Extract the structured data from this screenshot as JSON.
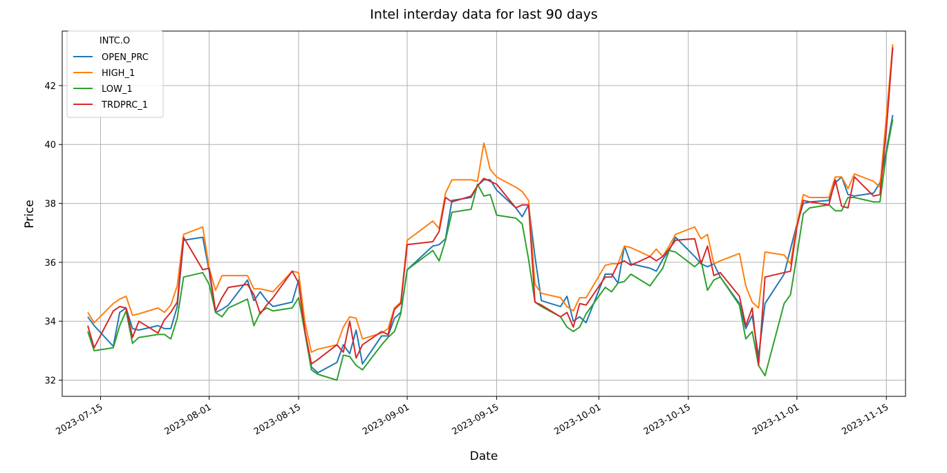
{
  "chart_data": {
    "type": "line",
    "title": "Intel interday data for last 90 days",
    "xlabel": "Date",
    "ylabel": "Price",
    "legend_title": "INTC.O",
    "legend_position": "upper-left",
    "grid": true,
    "xlim": [
      "2023-07-09",
      "2023-11-18"
    ],
    "ylim": [
      31.45,
      43.85
    ],
    "x_ticks": [
      "2023-07-15",
      "2023-08-01",
      "2023-08-15",
      "2023-09-01",
      "2023-09-15",
      "2023-10-01",
      "2023-10-15",
      "2023-11-01",
      "2023-11-15"
    ],
    "y_ticks": [
      32,
      34,
      36,
      38,
      40,
      42
    ],
    "x": [
      "2023-07-13",
      "2023-07-14",
      "2023-07-17",
      "2023-07-18",
      "2023-07-19",
      "2023-07-20",
      "2023-07-21",
      "2023-07-24",
      "2023-07-25",
      "2023-07-26",
      "2023-07-27",
      "2023-07-28",
      "2023-07-31",
      "2023-08-01",
      "2023-08-02",
      "2023-08-03",
      "2023-08-04",
      "2023-08-07",
      "2023-08-08",
      "2023-08-09",
      "2023-08-10",
      "2023-08-11",
      "2023-08-14",
      "2023-08-15",
      "2023-08-16",
      "2023-08-17",
      "2023-08-18",
      "2023-08-21",
      "2023-08-22",
      "2023-08-23",
      "2023-08-24",
      "2023-08-25",
      "2023-08-28",
      "2023-08-29",
      "2023-08-30",
      "2023-08-31",
      "2023-09-01",
      "2023-09-05",
      "2023-09-06",
      "2023-09-07",
      "2023-09-08",
      "2023-09-11",
      "2023-09-12",
      "2023-09-13",
      "2023-09-14",
      "2023-09-15",
      "2023-09-18",
      "2023-09-19",
      "2023-09-20",
      "2023-09-21",
      "2023-09-22",
      "2023-09-25",
      "2023-09-26",
      "2023-09-27",
      "2023-09-28",
      "2023-09-29",
      "2023-10-02",
      "2023-10-03",
      "2023-10-04",
      "2023-10-05",
      "2023-10-06",
      "2023-10-09",
      "2023-10-10",
      "2023-10-11",
      "2023-10-12",
      "2023-10-13",
      "2023-10-16",
      "2023-10-17",
      "2023-10-18",
      "2023-10-19",
      "2023-10-20",
      "2023-10-23",
      "2023-10-24",
      "2023-10-25",
      "2023-10-26",
      "2023-10-27",
      "2023-10-30",
      "2023-10-31",
      "2023-11-01",
      "2023-11-02",
      "2023-11-03",
      "2023-11-06",
      "2023-11-07",
      "2023-11-08",
      "2023-11-09",
      "2023-11-10",
      "2023-11-13",
      "2023-11-14",
      "2023-11-15",
      "2023-11-16"
    ],
    "series": [
      {
        "name": "OPEN_PRC",
        "color": "#1f77b4",
        "values": [
          34.15,
          33.85,
          33.15,
          34.3,
          34.45,
          33.75,
          33.7,
          33.85,
          33.75,
          33.75,
          34.5,
          36.75,
          36.85,
          35.7,
          34.3,
          34.4,
          34.55,
          35.4,
          34.7,
          35.0,
          34.7,
          34.5,
          34.65,
          35.4,
          33.65,
          32.45,
          32.25,
          32.6,
          33.2,
          32.9,
          33.7,
          32.55,
          33.5,
          33.5,
          34.1,
          34.3,
          35.75,
          36.55,
          36.6,
          36.8,
          38.1,
          38.2,
          38.6,
          38.8,
          38.8,
          38.45,
          37.85,
          37.55,
          37.95,
          36.2,
          34.7,
          34.5,
          34.85,
          34.0,
          34.15,
          33.95,
          35.6,
          35.6,
          35.3,
          36.55,
          35.95,
          35.8,
          35.7,
          36.1,
          36.4,
          36.85,
          36.2,
          35.95,
          35.85,
          35.95,
          35.5,
          34.6,
          33.75,
          34.2,
          32.8,
          34.6,
          35.6,
          36.45,
          37.3,
          38.0,
          38.05,
          38.1,
          38.7,
          38.9,
          38.3,
          38.25,
          38.35,
          38.7,
          39.8,
          41.0
        ]
      },
      {
        "name": "HIGH_1",
        "color": "#ff7f0e",
        "values": [
          34.3,
          33.95,
          34.6,
          34.75,
          34.85,
          34.2,
          34.25,
          34.45,
          34.3,
          34.55,
          35.2,
          36.95,
          37.2,
          35.8,
          35.05,
          35.55,
          35.55,
          35.55,
          35.1,
          35.1,
          35.05,
          35.0,
          35.7,
          35.65,
          33.95,
          32.95,
          33.05,
          33.2,
          33.8,
          34.15,
          34.1,
          33.4,
          33.6,
          33.75,
          34.45,
          34.65,
          36.75,
          37.4,
          37.15,
          38.35,
          38.8,
          38.8,
          38.75,
          40.05,
          39.15,
          38.9,
          38.55,
          38.4,
          38.1,
          35.25,
          34.95,
          34.8,
          34.5,
          34.35,
          34.8,
          34.8,
          35.9,
          35.95,
          35.95,
          36.55,
          36.5,
          36.2,
          36.45,
          36.2,
          36.55,
          36.95,
          37.2,
          36.8,
          36.95,
          35.95,
          36.05,
          36.3,
          35.2,
          34.65,
          34.45,
          36.35,
          36.25,
          35.95,
          37.3,
          38.3,
          38.2,
          38.2,
          38.9,
          38.9,
          38.5,
          39.0,
          38.75,
          38.55,
          40.95,
          43.4
        ]
      },
      {
        "name": "LOW_1",
        "color": "#2ca02c",
        "values": [
          33.65,
          33.0,
          33.1,
          33.85,
          34.35,
          33.25,
          33.45,
          33.55,
          33.55,
          33.4,
          34.1,
          35.5,
          35.65,
          35.25,
          34.3,
          34.15,
          34.45,
          34.75,
          33.85,
          34.3,
          34.45,
          34.35,
          34.45,
          34.8,
          33.6,
          32.35,
          32.2,
          32.0,
          32.85,
          32.8,
          32.5,
          32.35,
          33.2,
          33.45,
          33.65,
          34.25,
          35.75,
          36.4,
          36.05,
          36.75,
          37.7,
          37.8,
          38.65,
          38.25,
          38.3,
          37.6,
          37.5,
          37.3,
          36.1,
          34.65,
          34.5,
          34.15,
          33.8,
          33.65,
          33.8,
          34.25,
          35.15,
          35.0,
          35.3,
          35.35,
          35.6,
          35.2,
          35.5,
          35.8,
          36.4,
          36.35,
          35.85,
          36.05,
          35.05,
          35.4,
          35.5,
          34.55,
          33.4,
          33.65,
          32.5,
          32.15,
          34.6,
          34.9,
          36.25,
          37.65,
          37.85,
          37.95,
          37.75,
          37.75,
          38.2,
          38.2,
          38.05,
          38.05,
          39.7,
          40.85
        ]
      },
      {
        "name": "TRDPRC_1",
        "color": "#d62728",
        "values": [
          33.85,
          33.1,
          34.35,
          34.5,
          34.45,
          33.45,
          34.0,
          33.6,
          34.05,
          34.3,
          34.65,
          36.85,
          35.75,
          35.8,
          34.35,
          34.8,
          35.15,
          35.25,
          34.9,
          34.25,
          34.55,
          34.8,
          35.7,
          35.3,
          33.65,
          32.55,
          32.7,
          33.2,
          32.95,
          34.0,
          32.75,
          33.2,
          33.65,
          33.55,
          34.4,
          34.6,
          36.6,
          36.7,
          37.05,
          38.2,
          38.05,
          38.25,
          38.6,
          38.85,
          38.75,
          38.65,
          37.85,
          37.95,
          37.95,
          34.65,
          34.55,
          34.15,
          34.3,
          33.8,
          34.6,
          34.55,
          35.5,
          35.5,
          35.95,
          36.05,
          35.9,
          36.2,
          36.05,
          36.2,
          36.45,
          36.75,
          36.8,
          35.95,
          36.55,
          35.55,
          35.65,
          34.85,
          33.85,
          34.45,
          32.5,
          35.5,
          35.65,
          35.7,
          37.2,
          38.1,
          38.05,
          37.95,
          38.8,
          37.9,
          37.85,
          38.9,
          38.25,
          38.3,
          40.5,
          43.3
        ]
      }
    ]
  }
}
